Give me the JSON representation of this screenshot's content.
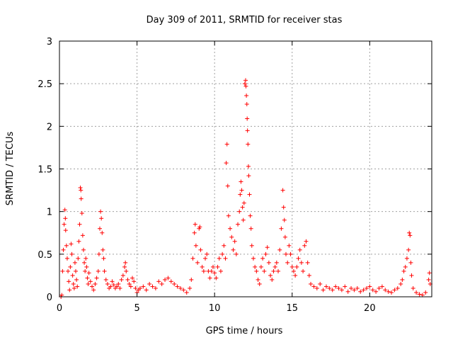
{
  "chart_data": {
    "type": "scatter",
    "title": "Day 309 of 2011, SRMTID for receiver stas",
    "xlabel": "GPS time / hours",
    "ylabel": "SRMTID / TECUs",
    "xlim": [
      0,
      24
    ],
    "ylim": [
      0,
      3
    ],
    "x_ticks": [
      0,
      5,
      10,
      15,
      20
    ],
    "x_tick_labels": [
      "0",
      "5",
      "10",
      "15",
      "20"
    ],
    "y_ticks": [
      0,
      0.5,
      1,
      1.5,
      2,
      2.5,
      3
    ],
    "y_tick_labels": [
      "0",
      "0.5",
      "1",
      "1.5",
      "2",
      "2.5",
      "3"
    ],
    "grid": true,
    "marker": "+",
    "marker_color": "#ff0000",
    "series": [
      {
        "name": "SRMTID",
        "points": [
          [
            0.1,
            0.0
          ],
          [
            0.15,
            0.02
          ],
          [
            0.2,
            0.3
          ],
          [
            0.25,
            0.55
          ],
          [
            0.3,
            0.85
          ],
          [
            0.35,
            1.02
          ],
          [
            0.38,
            0.92
          ],
          [
            0.4,
            0.78
          ],
          [
            0.45,
            0.6
          ],
          [
            0.5,
            0.45
          ],
          [
            0.55,
            0.3
          ],
          [
            0.6,
            0.18
          ],
          [
            0.65,
            0.08
          ],
          [
            0.7,
            0.35
          ],
          [
            0.75,
            0.62
          ],
          [
            0.8,
            0.5
          ],
          [
            0.85,
            0.25
          ],
          [
            0.9,
            0.15
          ],
          [
            0.95,
            0.1
          ],
          [
            1.0,
            0.4
          ],
          [
            1.05,
            0.3
          ],
          [
            1.1,
            0.2
          ],
          [
            1.15,
            0.12
          ],
          [
            1.2,
            0.45
          ],
          [
            1.25,
            0.65
          ],
          [
            1.3,
            0.85
          ],
          [
            1.35,
            1.28
          ],
          [
            1.38,
            1.25
          ],
          [
            1.4,
            1.15
          ],
          [
            1.45,
            0.98
          ],
          [
            1.5,
            0.72
          ],
          [
            1.55,
            0.55
          ],
          [
            1.6,
            0.4
          ],
          [
            1.65,
            0.3
          ],
          [
            1.7,
            0.45
          ],
          [
            1.75,
            0.35
          ],
          [
            1.8,
            0.22
          ],
          [
            1.85,
            0.15
          ],
          [
            1.9,
            0.28
          ],
          [
            2.0,
            0.18
          ],
          [
            2.1,
            0.12
          ],
          [
            2.2,
            0.08
          ],
          [
            2.3,
            0.15
          ],
          [
            2.4,
            0.22
          ],
          [
            2.5,
            0.3
          ],
          [
            2.55,
            0.5
          ],
          [
            2.6,
            0.8
          ],
          [
            2.65,
            1.0
          ],
          [
            2.7,
            0.92
          ],
          [
            2.75,
            0.75
          ],
          [
            2.8,
            0.55
          ],
          [
            2.85,
            0.45
          ],
          [
            2.9,
            0.3
          ],
          [
            3.0,
            0.2
          ],
          [
            3.1,
            0.15
          ],
          [
            3.2,
            0.1
          ],
          [
            3.3,
            0.12
          ],
          [
            3.4,
            0.18
          ],
          [
            3.5,
            0.14
          ],
          [
            3.6,
            0.1
          ],
          [
            3.7,
            0.12
          ],
          [
            3.8,
            0.15
          ],
          [
            3.9,
            0.1
          ],
          [
            4.0,
            0.2
          ],
          [
            4.1,
            0.25
          ],
          [
            4.2,
            0.35
          ],
          [
            4.25,
            0.4
          ],
          [
            4.3,
            0.3
          ],
          [
            4.4,
            0.2
          ],
          [
            4.5,
            0.15
          ],
          [
            4.6,
            0.12
          ],
          [
            4.7,
            0.22
          ],
          [
            4.8,
            0.18
          ],
          [
            4.9,
            0.1
          ],
          [
            5.0,
            0.05
          ],
          [
            5.1,
            0.08
          ],
          [
            5.2,
            0.1
          ],
          [
            5.4,
            0.12
          ],
          [
            5.6,
            0.08
          ],
          [
            5.8,
            0.15
          ],
          [
            6.0,
            0.12
          ],
          [
            6.2,
            0.1
          ],
          [
            6.4,
            0.18
          ],
          [
            6.6,
            0.15
          ],
          [
            6.8,
            0.2
          ],
          [
            7.0,
            0.22
          ],
          [
            7.2,
            0.18
          ],
          [
            7.4,
            0.15
          ],
          [
            7.6,
            0.12
          ],
          [
            7.8,
            0.1
          ],
          [
            8.0,
            0.08
          ],
          [
            8.2,
            0.05
          ],
          [
            8.4,
            0.1
          ],
          [
            8.5,
            0.2
          ],
          [
            8.6,
            0.45
          ],
          [
            8.7,
            0.75
          ],
          [
            8.75,
            0.85
          ],
          [
            8.8,
            0.6
          ],
          [
            8.9,
            0.4
          ],
          [
            9.0,
            0.8
          ],
          [
            9.05,
            0.82
          ],
          [
            9.1,
            0.55
          ],
          [
            9.2,
            0.35
          ],
          [
            9.3,
            0.3
          ],
          [
            9.4,
            0.45
          ],
          [
            9.5,
            0.5
          ],
          [
            9.6,
            0.3
          ],
          [
            9.7,
            0.22
          ],
          [
            9.8,
            0.3
          ],
          [
            9.9,
            0.35
          ],
          [
            10.0,
            0.28
          ],
          [
            10.1,
            0.22
          ],
          [
            10.2,
            0.35
          ],
          [
            10.3,
            0.45
          ],
          [
            10.4,
            0.3
          ],
          [
            10.5,
            0.5
          ],
          [
            10.6,
            0.6
          ],
          [
            10.7,
            0.45
          ],
          [
            10.75,
            1.57
          ],
          [
            10.8,
            1.79
          ],
          [
            10.85,
            1.3
          ],
          [
            10.9,
            0.95
          ],
          [
            11.0,
            0.8
          ],
          [
            11.1,
            0.7
          ],
          [
            11.2,
            0.55
          ],
          [
            11.3,
            0.65
          ],
          [
            11.4,
            0.5
          ],
          [
            11.5,
            0.85
          ],
          [
            11.6,
            1.0
          ],
          [
            11.65,
            1.2
          ],
          [
            11.7,
            1.35
          ],
          [
            11.75,
            1.25
          ],
          [
            11.8,
            1.05
          ],
          [
            11.85,
            0.9
          ],
          [
            11.9,
            1.1
          ],
          [
            11.95,
            2.5
          ],
          [
            12.0,
            2.54
          ],
          [
            12.02,
            2.47
          ],
          [
            12.05,
            2.36
          ],
          [
            12.08,
            2.26
          ],
          [
            12.1,
            2.09
          ],
          [
            12.12,
            1.95
          ],
          [
            12.15,
            1.79
          ],
          [
            12.18,
            1.53
          ],
          [
            12.2,
            1.42
          ],
          [
            12.25,
            1.2
          ],
          [
            12.3,
            0.95
          ],
          [
            12.35,
            0.8
          ],
          [
            12.4,
            0.6
          ],
          [
            12.5,
            0.45
          ],
          [
            12.6,
            0.35
          ],
          [
            12.7,
            0.3
          ],
          [
            12.8,
            0.2
          ],
          [
            12.9,
            0.15
          ],
          [
            13.0,
            0.35
          ],
          [
            13.1,
            0.45
          ],
          [
            13.2,
            0.3
          ],
          [
            13.3,
            0.5
          ],
          [
            13.4,
            0.58
          ],
          [
            13.5,
            0.4
          ],
          [
            13.6,
            0.25
          ],
          [
            13.7,
            0.2
          ],
          [
            13.8,
            0.3
          ],
          [
            13.9,
            0.35
          ],
          [
            14.0,
            0.4
          ],
          [
            14.1,
            0.3
          ],
          [
            14.2,
            0.55
          ],
          [
            14.3,
            0.8
          ],
          [
            14.4,
            1.25
          ],
          [
            14.45,
            1.05
          ],
          [
            14.5,
            0.9
          ],
          [
            14.55,
            0.7
          ],
          [
            14.6,
            0.5
          ],
          [
            14.7,
            0.4
          ],
          [
            14.8,
            0.6
          ],
          [
            14.9,
            0.5
          ],
          [
            15.0,
            0.35
          ],
          [
            15.1,
            0.3
          ],
          [
            15.2,
            0.25
          ],
          [
            15.3,
            0.35
          ],
          [
            15.4,
            0.45
          ],
          [
            15.5,
            0.55
          ],
          [
            15.6,
            0.4
          ],
          [
            15.7,
            0.3
          ],
          [
            15.8,
            0.6
          ],
          [
            15.9,
            0.65
          ],
          [
            16.0,
            0.4
          ],
          [
            16.1,
            0.25
          ],
          [
            16.2,
            0.15
          ],
          [
            16.4,
            0.12
          ],
          [
            16.6,
            0.1
          ],
          [
            16.8,
            0.15
          ],
          [
            17.0,
            0.08
          ],
          [
            17.2,
            0.12
          ],
          [
            17.4,
            0.1
          ],
          [
            17.6,
            0.08
          ],
          [
            17.8,
            0.12
          ],
          [
            18.0,
            0.1
          ],
          [
            18.2,
            0.08
          ],
          [
            18.4,
            0.12
          ],
          [
            18.6,
            0.06
          ],
          [
            18.8,
            0.1
          ],
          [
            19.0,
            0.08
          ],
          [
            19.2,
            0.1
          ],
          [
            19.4,
            0.06
          ],
          [
            19.6,
            0.08
          ],
          [
            19.8,
            0.1
          ],
          [
            20.0,
            0.12
          ],
          [
            20.2,
            0.08
          ],
          [
            20.4,
            0.06
          ],
          [
            20.6,
            0.1
          ],
          [
            20.8,
            0.12
          ],
          [
            21.0,
            0.08
          ],
          [
            21.2,
            0.06
          ],
          [
            21.4,
            0.05
          ],
          [
            21.6,
            0.08
          ],
          [
            21.8,
            0.1
          ],
          [
            22.0,
            0.15
          ],
          [
            22.1,
            0.2
          ],
          [
            22.2,
            0.3
          ],
          [
            22.3,
            0.35
          ],
          [
            22.4,
            0.45
          ],
          [
            22.5,
            0.55
          ],
          [
            22.55,
            0.75
          ],
          [
            22.6,
            0.72
          ],
          [
            22.65,
            0.4
          ],
          [
            22.7,
            0.25
          ],
          [
            22.8,
            0.1
          ],
          [
            23.0,
            0.05
          ],
          [
            23.2,
            0.03
          ],
          [
            23.4,
            0.02
          ],
          [
            23.6,
            0.05
          ],
          [
            23.8,
            0.2
          ],
          [
            23.85,
            0.28
          ],
          [
            23.9,
            0.15
          ]
        ]
      }
    ]
  }
}
